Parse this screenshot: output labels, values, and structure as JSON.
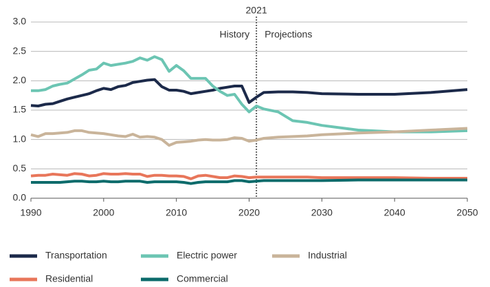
{
  "chart_data": {
    "type": "line",
    "divider": 2021,
    "left_label": "History",
    "right_label": "Projections",
    "x": [
      1990,
      1991,
      1992,
      1993,
      1994,
      1995,
      1996,
      1997,
      1998,
      1999,
      2000,
      2001,
      2002,
      2003,
      2004,
      2005,
      2006,
      2007,
      2008,
      2009,
      2010,
      2011,
      2012,
      2013,
      2014,
      2015,
      2016,
      2017,
      2018,
      2019,
      2020,
      2021,
      2022,
      2024,
      2026,
      2028,
      2030,
      2035,
      2040,
      2045,
      2050
    ],
    "xlim": [
      1990,
      2050
    ],
    "xticks": [
      1990,
      2000,
      2010,
      2020,
      2030,
      2040,
      2050
    ],
    "ylim": [
      0,
      3
    ],
    "yticks": [
      {
        "value": 0,
        "label": "0.0"
      },
      0.5,
      {
        "value": 1,
        "label": "1.0"
      },
      1.5,
      {
        "value": 2,
        "label": "2.0"
      },
      2.5,
      {
        "value": 3,
        "label": "3.0"
      }
    ],
    "grid": true,
    "legend": "bottom",
    "series": [
      {
        "name": "Transportation",
        "color": "#1c2a4a",
        "values": [
          1.58,
          1.57,
          1.6,
          1.61,
          1.65,
          1.69,
          1.72,
          1.75,
          1.78,
          1.83,
          1.87,
          1.85,
          1.9,
          1.92,
          1.97,
          1.99,
          2.01,
          2.02,
          1.9,
          1.84,
          1.84,
          1.82,
          1.78,
          1.8,
          1.82,
          1.84,
          1.87,
          1.89,
          1.91,
          1.91,
          1.63,
          1.72,
          1.8,
          1.81,
          1.81,
          1.8,
          1.78,
          1.77,
          1.77,
          1.8,
          1.85
        ]
      },
      {
        "name": "Electric power",
        "color": "#6cc5b3",
        "values": [
          1.83,
          1.83,
          1.85,
          1.91,
          1.94,
          1.96,
          2.03,
          2.1,
          2.18,
          2.2,
          2.3,
          2.26,
          2.28,
          2.3,
          2.33,
          2.39,
          2.35,
          2.41,
          2.36,
          2.16,
          2.26,
          2.17,
          2.04,
          2.04,
          2.04,
          1.91,
          1.82,
          1.75,
          1.77,
          1.6,
          1.47,
          1.57,
          1.52,
          1.47,
          1.32,
          1.29,
          1.24,
          1.16,
          1.13,
          1.13,
          1.15
        ]
      },
      {
        "name": "Industrial",
        "color": "#c9b49a",
        "values": [
          1.08,
          1.05,
          1.1,
          1.1,
          1.11,
          1.12,
          1.15,
          1.15,
          1.12,
          1.11,
          1.1,
          1.08,
          1.06,
          1.05,
          1.09,
          1.04,
          1.05,
          1.04,
          1.0,
          0.9,
          0.95,
          0.96,
          0.97,
          0.99,
          1.0,
          0.99,
          0.99,
          1.0,
          1.03,
          1.02,
          0.97,
          0.99,
          1.02,
          1.04,
          1.05,
          1.06,
          1.08,
          1.11,
          1.13,
          1.16,
          1.19
        ]
      },
      {
        "name": "Residential",
        "color": "#e8765a",
        "values": [
          0.38,
          0.39,
          0.39,
          0.41,
          0.4,
          0.39,
          0.42,
          0.41,
          0.38,
          0.39,
          0.42,
          0.41,
          0.41,
          0.42,
          0.41,
          0.41,
          0.37,
          0.39,
          0.39,
          0.38,
          0.38,
          0.37,
          0.33,
          0.38,
          0.39,
          0.37,
          0.35,
          0.35,
          0.38,
          0.37,
          0.35,
          0.36,
          0.36,
          0.36,
          0.36,
          0.36,
          0.35,
          0.35,
          0.35,
          0.34,
          0.34
        ]
      },
      {
        "name": "Commercial",
        "color": "#0b6b6b",
        "values": [
          0.27,
          0.27,
          0.27,
          0.27,
          0.27,
          0.28,
          0.29,
          0.29,
          0.28,
          0.28,
          0.29,
          0.28,
          0.28,
          0.29,
          0.29,
          0.29,
          0.27,
          0.28,
          0.28,
          0.28,
          0.28,
          0.27,
          0.25,
          0.27,
          0.28,
          0.28,
          0.28,
          0.28,
          0.3,
          0.3,
          0.28,
          0.29,
          0.3,
          0.3,
          0.3,
          0.3,
          0.3,
          0.31,
          0.31,
          0.31,
          0.31
        ]
      }
    ]
  }
}
